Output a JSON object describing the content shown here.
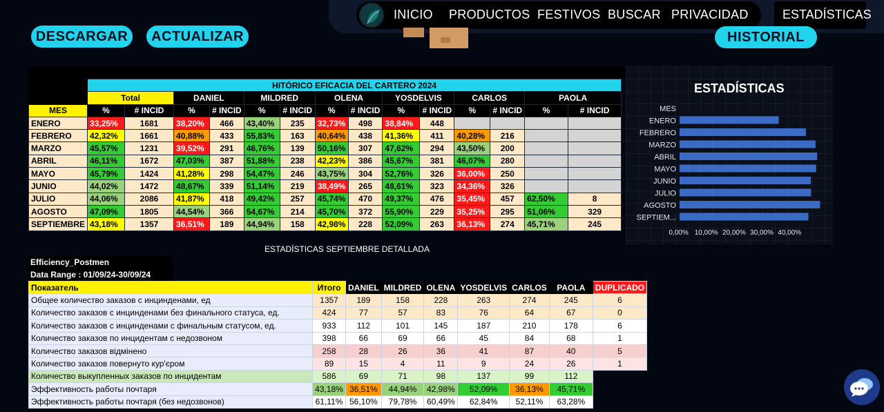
{
  "nav": {
    "items": [
      "INICIO",
      "PRODUCTOS",
      "FESTIVOS",
      "BUSCAR",
      "PRIVACIDAD"
    ],
    "active": "ESTADÍSTICAS"
  },
  "buttons": {
    "download": "DESCARGAR",
    "update": "ACTUALIZAR",
    "history": "HISTORIAL"
  },
  "main_table": {
    "title": "HITÓRICO EFICACIA DEL CARTERO 2024",
    "groups": [
      "Total",
      "DANIEL",
      "MILDRED",
      "OLENA",
      "YOSDELVIS",
      "CARLOS",
      "PAOLA"
    ],
    "mes_label": "MES",
    "pct_label": "%",
    "incid_label": "# INCID",
    "rows": [
      {
        "mes": "ENERO",
        "cells": [
          [
            "33,25%",
            "1681",
            "r"
          ],
          [
            "38,20%",
            "466",
            "r"
          ],
          [
            "43,40%",
            "235",
            "lg"
          ],
          [
            "32,73%",
            "498",
            "r"
          ],
          [
            "38,84%",
            "448",
            "r"
          ],
          [
            "",
            "",
            "gray"
          ],
          [
            "",
            "",
            "gray"
          ]
        ]
      },
      {
        "mes": "FEBRERO",
        "cells": [
          [
            "42,32%",
            "1661",
            "y"
          ],
          [
            "40,88%",
            "433",
            "o"
          ],
          [
            "55,83%",
            "163",
            "g"
          ],
          [
            "40,64%",
            "438",
            "o"
          ],
          [
            "41,36%",
            "411",
            "y"
          ],
          [
            "40,28%",
            "216",
            "o"
          ],
          [
            "",
            "",
            "gray"
          ]
        ]
      },
      {
        "mes": "MARZO",
        "cells": [
          [
            "45,57%",
            "1231",
            "g"
          ],
          [
            "39,52%",
            "291",
            "r"
          ],
          [
            "46,76%",
            "139",
            "g"
          ],
          [
            "50,16%",
            "307",
            "g"
          ],
          [
            "47,62%",
            "294",
            "g"
          ],
          [
            "43,50%",
            "200",
            "lg"
          ],
          [
            "",
            "",
            "gray"
          ]
        ]
      },
      {
        "mes": "ABRIL",
        "cells": [
          [
            "46,11%",
            "1672",
            "g"
          ],
          [
            "47,03%",
            "387",
            "g"
          ],
          [
            "51,88%",
            "238",
            "g"
          ],
          [
            "42,23%",
            "386",
            "y"
          ],
          [
            "45,67%",
            "381",
            "g"
          ],
          [
            "46,07%",
            "280",
            "g"
          ],
          [
            "",
            "",
            "gray"
          ]
        ]
      },
      {
        "mes": "MAYO",
        "cells": [
          [
            "45,79%",
            "1424",
            "g"
          ],
          [
            "41,28%",
            "298",
            "y"
          ],
          [
            "54,47%",
            "246",
            "g"
          ],
          [
            "43,75%",
            "304",
            "lg"
          ],
          [
            "52,76%",
            "326",
            "g"
          ],
          [
            "36,00%",
            "250",
            "r"
          ],
          [
            "",
            "",
            "gray"
          ]
        ]
      },
      {
        "mes": "JUNIO",
        "cells": [
          [
            "44,02%",
            "1472",
            "lg"
          ],
          [
            "48,67%",
            "339",
            "g"
          ],
          [
            "51,14%",
            "219",
            "g"
          ],
          [
            "38,49%",
            "265",
            "r"
          ],
          [
            "48,61%",
            "323",
            "g"
          ],
          [
            "34,36%",
            "326",
            "r"
          ],
          [
            "",
            "",
            "gray"
          ]
        ]
      },
      {
        "mes": "JULIO",
        "cells": [
          [
            "44,06%",
            "2086",
            "lg"
          ],
          [
            "41,87%",
            "418",
            "y"
          ],
          [
            "49,42%",
            "257",
            "g"
          ],
          [
            "45,74%",
            "470",
            "g"
          ],
          [
            "49,37%",
            "476",
            "g"
          ],
          [
            "35,45%",
            "457",
            "r"
          ],
          [
            "62,50%",
            "8",
            "g"
          ]
        ]
      },
      {
        "mes": "AGOSTO",
        "cells": [
          [
            "47,09%",
            "1805",
            "g"
          ],
          [
            "44,54%",
            "366",
            "lg"
          ],
          [
            "54,67%",
            "214",
            "g"
          ],
          [
            "45,70%",
            "372",
            "g"
          ],
          [
            "55,90%",
            "229",
            "g"
          ],
          [
            "35,25%",
            "295",
            "r"
          ],
          [
            "51,06%",
            "329",
            "g"
          ]
        ]
      },
      {
        "mes": "SEPTIEMBRE",
        "cells": [
          [
            "43,18%",
            "1357",
            "y"
          ],
          [
            "36,51%",
            "189",
            "r"
          ],
          [
            "44,94%",
            "158",
            "lg"
          ],
          [
            "42,98%",
            "228",
            "y"
          ],
          [
            "52,09%",
            "263",
            "g"
          ],
          [
            "36,13%",
            "274",
            "r"
          ],
          [
            "45,71%",
            "245",
            "lg"
          ]
        ]
      }
    ]
  },
  "chart_title": "ESTADÍSTICAS",
  "chart_data": {
    "type": "bar",
    "orientation": "horizontal",
    "header": "MES",
    "categories": [
      "ENERO",
      "FEBRERO",
      "MARZO",
      "ABRIL",
      "MAYO",
      "JUNIO",
      "JULIO",
      "AGOSTO",
      "SEPTIEM..."
    ],
    "values": [
      33.25,
      42.32,
      45.57,
      46.11,
      45.79,
      44.02,
      44.06,
      47.09,
      43.18
    ],
    "xticks": [
      "0,00%",
      "10,00%",
      "20,00%",
      "30,00%",
      "40,00%"
    ],
    "xlim": [
      0,
      50
    ],
    "color": "#3b6bc4"
  },
  "detail": {
    "title": "ESTADÍSTICAS SEPTIEMBRE DETALLADA",
    "efficiency_label": "Efficiency_Postmen",
    "range_label": "Data Range : 01/09/24-30/09/24",
    "headers": [
      "Показатель",
      "Итого",
      "DANIEL",
      "MILDRED",
      "OLENA",
      "YOSDELVIS",
      "CARLOS",
      "PAOLA",
      "DUPLICADO"
    ],
    "rows": [
      {
        "label": "Общее количество заказов с инцинденами, ед",
        "values": [
          "1357",
          "189",
          "158",
          "228",
          "263",
          "274",
          "245",
          "6"
        ],
        "style": "cream"
      },
      {
        "label": "Количество заказов с инцинденами без финального статуса, ед.",
        "values": [
          "424",
          "77",
          "57",
          "83",
          "76",
          "64",
          "67",
          "0"
        ],
        "style": "cream"
      },
      {
        "label": "Количество заказов с инцинденами с финальным статусом, ед.",
        "values": [
          "933",
          "112",
          "101",
          "145",
          "187",
          "210",
          "178",
          "6"
        ],
        "style": "wh"
      },
      {
        "label": "Количество заказов по инцидентам с недозвоном",
        "values": [
          "398",
          "66",
          "69",
          "66",
          "45",
          "84",
          "68",
          "1"
        ],
        "style": "wh"
      },
      {
        "label": "Количество заказов відмінено",
        "values": [
          "258",
          "28",
          "26",
          "36",
          "41",
          "87",
          "40",
          "5"
        ],
        "style": "pink"
      },
      {
        "label": "Количество заказов повернуто кур'єром",
        "values": [
          "89",
          "15",
          "4",
          "11",
          "9",
          "24",
          "26",
          "1"
        ],
        "style": "lpink"
      },
      {
        "label": "Количество выкупленных заказов по инцидентам",
        "values": [
          "586",
          "69",
          "71",
          "98",
          "137",
          "99",
          "112",
          ""
        ],
        "style": "green2"
      },
      {
        "label": "Эффективность работы почтаря",
        "values": [
          "43,18%",
          "36,51%",
          "44,94%",
          "42,98%",
          "52,09%",
          "36,13%",
          "45,71%",
          ""
        ],
        "style": "eff"
      },
      {
        "label": "Эффективность работы почтаря (без недозвонов)",
        "values": [
          "61,11%",
          "56,10%",
          "79,78%",
          "60,49%",
          "62,84%",
          "52,11%",
          "63,28%",
          ""
        ],
        "style": "wh"
      }
    ],
    "eff_colors": [
      "lg",
      "o",
      "lg",
      "lg",
      "g",
      "o",
      "g"
    ]
  }
}
